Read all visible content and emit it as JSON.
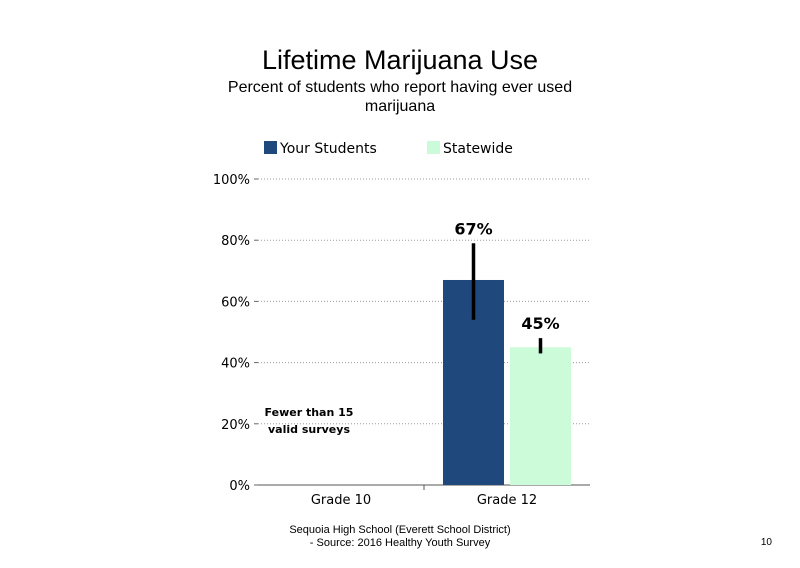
{
  "chart_data": {
    "type": "bar",
    "title": "Lifetime Marijuana Use",
    "subtitle": "Percent of students who report having ever used marijuana",
    "categories": [
      "Grade 10",
      "Grade 12"
    ],
    "series": [
      {
        "name": "Your Students",
        "color": "#1F497D",
        "values": [
          null,
          67
        ],
        "labels": [
          "",
          "67%"
        ],
        "error_low": [
          null,
          54
        ],
        "error_high": [
          null,
          79
        ]
      },
      {
        "name": "Statewide",
        "color": "#CCFBD9",
        "values": [
          null,
          45
        ],
        "labels": [
          "",
          "45%"
        ],
        "error_low": [
          null,
          43
        ],
        "error_high": [
          null,
          48
        ]
      }
    ],
    "ylim": [
      0,
      100
    ],
    "yticks": [
      0,
      20,
      40,
      60,
      80,
      100
    ],
    "ytick_labels": [
      "0%",
      "20%",
      "40%",
      "60%",
      "80%",
      "100%"
    ],
    "grid": "dotted horizontal",
    "legend_position": "top",
    "annotation": "Fewer than 15 valid surveys",
    "xlabel": "",
    "ylabel": ""
  },
  "footer": {
    "line1": "Sequoia High School (Everett School District)",
    "line2": "- Source: 2016 Healthy Youth Survey"
  },
  "page_number": "10"
}
